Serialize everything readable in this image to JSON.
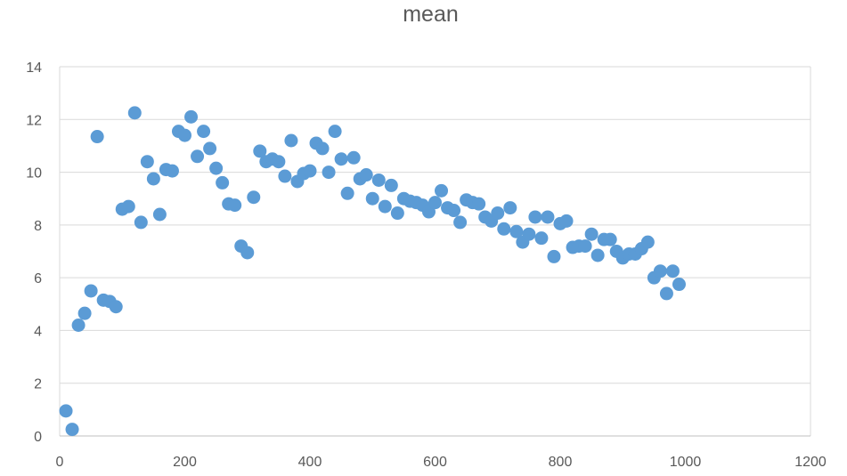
{
  "chart_data": {
    "type": "scatter",
    "title": "mean",
    "xlabel": "",
    "ylabel": "",
    "xlim": [
      0,
      1200
    ],
    "ylim": [
      0,
      14
    ],
    "xticks": [
      0,
      200,
      400,
      600,
      800,
      1000,
      1200
    ],
    "yticks": [
      0,
      2,
      4,
      6,
      8,
      10,
      12,
      14
    ],
    "grid": "horizontal",
    "legend": "none",
    "marker_color": "#5B9BD5",
    "series": [
      {
        "points": [
          [
            10,
            0.95
          ],
          [
            20,
            0.25
          ],
          [
            30,
            4.2
          ],
          [
            40,
            4.65
          ],
          [
            50,
            5.5
          ],
          [
            60,
            11.35
          ],
          [
            70,
            5.15
          ],
          [
            80,
            5.1
          ],
          [
            90,
            4.9
          ],
          [
            100,
            8.6
          ],
          [
            110,
            8.7
          ],
          [
            120,
            12.25
          ],
          [
            130,
            8.1
          ],
          [
            140,
            10.4
          ],
          [
            150,
            9.75
          ],
          [
            160,
            8.4
          ],
          [
            170,
            10.1
          ],
          [
            180,
            10.05
          ],
          [
            190,
            11.55
          ],
          [
            200,
            11.4
          ],
          [
            210,
            12.1
          ],
          [
            220,
            10.6
          ],
          [
            230,
            11.55
          ],
          [
            240,
            10.9
          ],
          [
            250,
            10.15
          ],
          [
            260,
            9.6
          ],
          [
            270,
            8.8
          ],
          [
            280,
            8.75
          ],
          [
            290,
            7.2
          ],
          [
            300,
            6.95
          ],
          [
            310,
            9.05
          ],
          [
            320,
            10.8
          ],
          [
            330,
            10.4
          ],
          [
            340,
            10.5
          ],
          [
            350,
            10.4
          ],
          [
            360,
            9.85
          ],
          [
            370,
            11.2
          ],
          [
            380,
            9.65
          ],
          [
            390,
            9.95
          ],
          [
            400,
            10.05
          ],
          [
            410,
            11.1
          ],
          [
            420,
            10.9
          ],
          [
            430,
            10.0
          ],
          [
            440,
            11.55
          ],
          [
            450,
            10.5
          ],
          [
            460,
            9.2
          ],
          [
            470,
            10.55
          ],
          [
            480,
            9.75
          ],
          [
            490,
            9.9
          ],
          [
            500,
            9.0
          ],
          [
            510,
            9.7
          ],
          [
            520,
            8.7
          ],
          [
            530,
            9.5
          ],
          [
            540,
            8.45
          ],
          [
            550,
            9.0
          ],
          [
            560,
            8.9
          ],
          [
            570,
            8.85
          ],
          [
            580,
            8.75
          ],
          [
            590,
            8.5
          ],
          [
            600,
            8.85
          ],
          [
            610,
            9.3
          ],
          [
            620,
            8.65
          ],
          [
            630,
            8.55
          ],
          [
            640,
            8.1
          ],
          [
            650,
            8.95
          ],
          [
            660,
            8.85
          ],
          [
            670,
            8.8
          ],
          [
            680,
            8.3
          ],
          [
            690,
            8.15
          ],
          [
            700,
            8.45
          ],
          [
            710,
            7.85
          ],
          [
            720,
            8.65
          ],
          [
            730,
            7.75
          ],
          [
            740,
            7.35
          ],
          [
            750,
            7.65
          ],
          [
            760,
            8.3
          ],
          [
            770,
            7.5
          ],
          [
            780,
            8.3
          ],
          [
            790,
            6.8
          ],
          [
            800,
            8.05
          ],
          [
            810,
            8.15
          ],
          [
            820,
            7.15
          ],
          [
            830,
            7.2
          ],
          [
            840,
            7.2
          ],
          [
            850,
            7.65
          ],
          [
            860,
            6.85
          ],
          [
            870,
            7.45
          ],
          [
            880,
            7.45
          ],
          [
            890,
            7.0
          ],
          [
            900,
            6.75
          ],
          [
            910,
            6.9
          ],
          [
            920,
            6.9
          ],
          [
            930,
            7.1
          ],
          [
            940,
            7.35
          ],
          [
            950,
            6.0
          ],
          [
            960,
            6.25
          ],
          [
            970,
            5.4
          ],
          [
            980,
            6.25
          ],
          [
            990,
            5.75
          ]
        ]
      }
    ]
  }
}
